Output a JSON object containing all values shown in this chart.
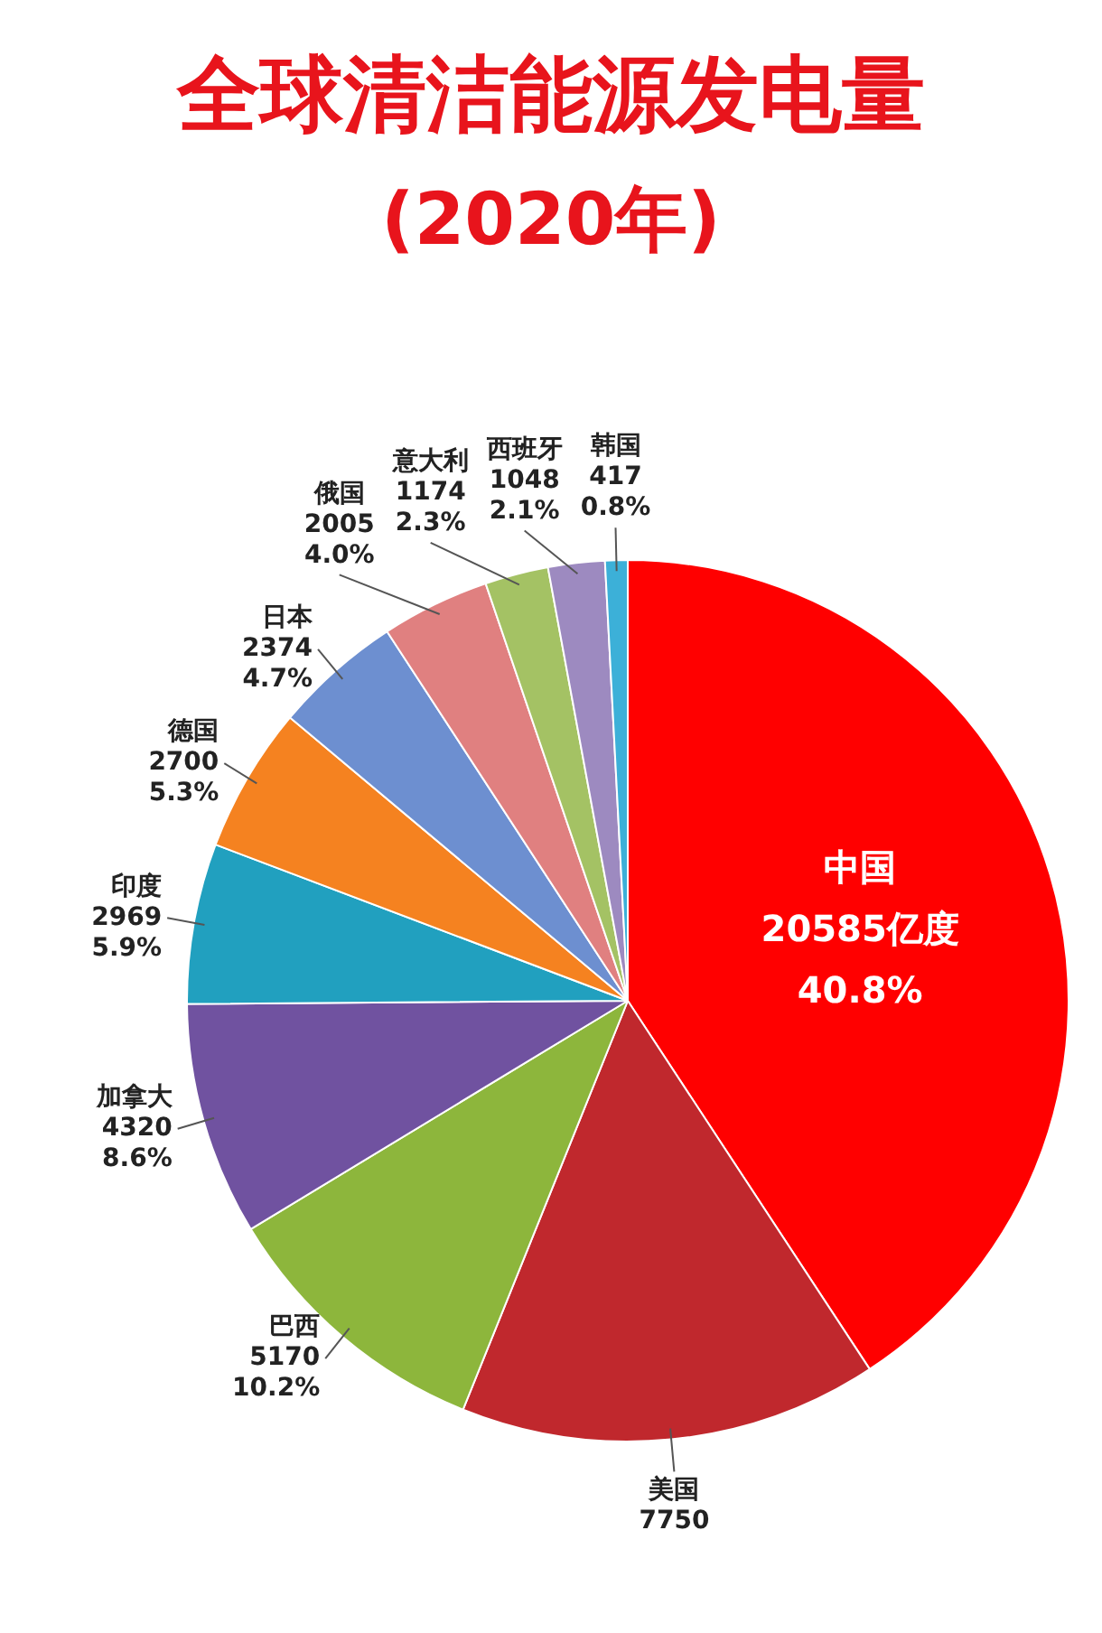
{
  "chart_data": {
    "type": "pie",
    "title": "全球清洁能源发电量",
    "subtitle": "(2020年)",
    "categories": [
      "中国",
      "美国",
      "巴西",
      "加拿大",
      "印度",
      "德国",
      "日本",
      "俄国",
      "意大利",
      "西班牙",
      "韩国"
    ],
    "values": [
      20585,
      7750,
      5170,
      4320,
      2969,
      2700,
      2374,
      2005,
      1174,
      1048,
      417
    ],
    "value_labels": [
      "20585亿度\n40.8%",
      "7750",
      "5170\n10.2%",
      "4320\n8.6%",
      "2969\n5.9%",
      "2700\n5.3%",
      "2374\n4.7%",
      "2005\n4.0%",
      "1174\n2.3%",
      "1048\n2.1%",
      "417\n0.8%"
    ],
    "colors": [
      "#ff0000",
      "#c0282d",
      "#8db63c",
      "#7052a0",
      "#21a0bf",
      "#f58220",
      "#6d8fd0",
      "#e08080",
      "#a4c264",
      "#9d8ac0",
      "#3cb0d8"
    ],
    "legend": false
  }
}
